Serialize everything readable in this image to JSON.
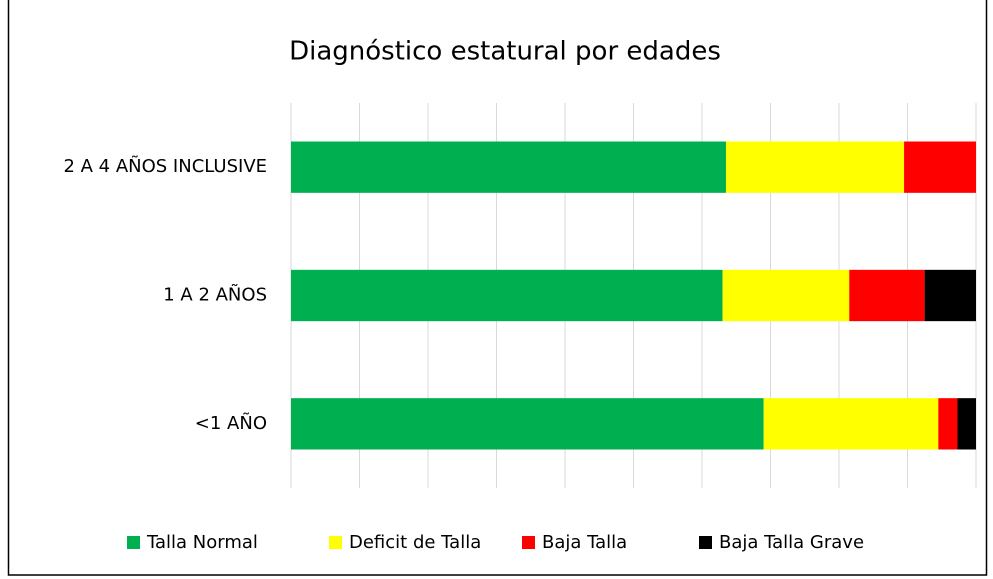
{
  "chart_data": {
    "type": "stacked_barh",
    "title": "Diagnóstico estatural por edades",
    "categories": [
      "2 A 4 AÑOS INCLUSIVE",
      "1 A 2 AÑOS",
      "<1 AÑO"
    ],
    "series": [
      {
        "name": "Talla Normal",
        "color": "#00b050",
        "values": [
          63.5,
          63,
          69
        ]
      },
      {
        "name": "Deficit de Talla",
        "color": "#ffff00",
        "values": [
          26,
          18.5,
          25.5
        ]
      },
      {
        "name": "Baja Talla",
        "color": "#ff0000",
        "values": [
          10.5,
          11,
          2.8
        ]
      },
      {
        "name": "Baja Talla Grave",
        "color": "#000000",
        "values": [
          0,
          7.5,
          2.7
        ]
      }
    ],
    "xlim": [
      0,
      100
    ],
    "xticks": [
      0,
      10,
      20,
      30,
      40,
      50,
      60,
      70,
      80,
      90,
      100
    ],
    "grid": true,
    "legend": "bottom"
  }
}
